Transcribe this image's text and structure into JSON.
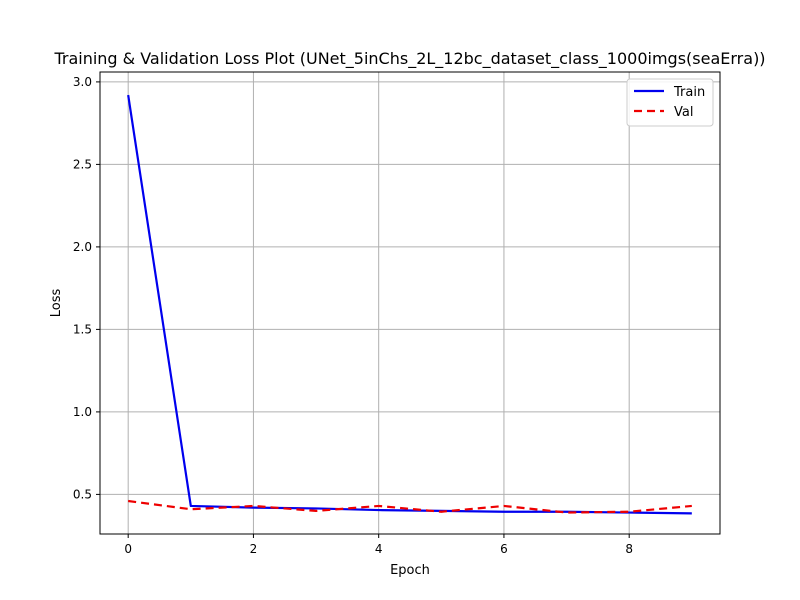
{
  "chart_data": {
    "type": "line",
    "title": "Training & Validation Loss Plot (UNet_5inChs_2L_12bc_dataset_class_1000imgs(seaErra))",
    "xlabel": "Epoch",
    "ylabel": "Loss",
    "xlim": [
      -0.45,
      9.45
    ],
    "ylim": [
      0.26,
      3.06
    ],
    "xticks": [
      0,
      2,
      4,
      6,
      8
    ],
    "yticks": [
      0.5,
      1.0,
      1.5,
      2.0,
      2.5,
      3.0
    ],
    "xtick_labels": [
      "0",
      "2",
      "4",
      "6",
      "8"
    ],
    "ytick_labels": [
      "0.5",
      "1.0",
      "1.5",
      "2.0",
      "2.5",
      "3.0"
    ],
    "grid": true,
    "legend_position": "top-right",
    "x": [
      0,
      1,
      2,
      3,
      4,
      5,
      6,
      7,
      8,
      9
    ],
    "series": [
      {
        "name": "Train",
        "color": "#0000ee",
        "style": "solid",
        "values": [
          2.92,
          0.43,
          0.42,
          0.415,
          0.405,
          0.4,
          0.395,
          0.395,
          0.39,
          0.385
        ]
      },
      {
        "name": "Val",
        "color": "#ee0000",
        "style": "dashed",
        "values": [
          0.46,
          0.41,
          0.43,
          0.4,
          0.43,
          0.395,
          0.43,
          0.39,
          0.395,
          0.43
        ]
      }
    ]
  }
}
